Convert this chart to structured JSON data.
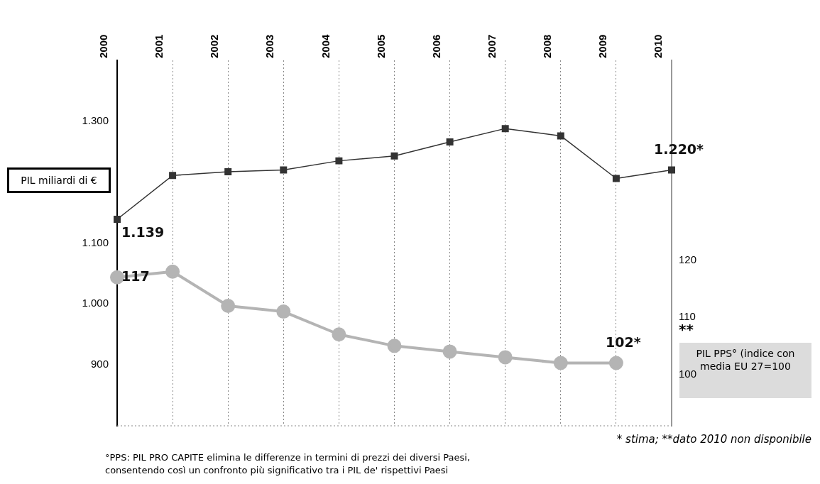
{
  "chart_data": {
    "type": "line",
    "categories": [
      "2000",
      "2001",
      "2002",
      "2003",
      "2004",
      "2005",
      "2006",
      "2007",
      "2008",
      "2009",
      "2010"
    ],
    "ylabel": "PIL miliardi di €",
    "y2label": "PIL PPS° (indice con media EU 27=100",
    "ylim": [
      800,
      1400
    ],
    "yticks": [
      900,
      {
        "value": 1000,
        "label": "1.000"
      },
      {
        "value": 1100,
        "label": "1.100"
      },
      {
        "value": 1300,
        "label": "1.300"
      }
    ],
    "y2lim": [
      91,
      155
    ],
    "y2ticks": [
      100,
      110,
      120
    ],
    "grid": "x",
    "line_style": "solid",
    "legend": false,
    "series": [
      {
        "name": null,
        "color": "#333333",
        "marker": "square",
        "values": [
          1139,
          1211,
          1217,
          1220,
          1235,
          1243,
          1266,
          1288,
          1276,
          1206,
          1220
        ],
        "value_labels": [
          "1.139",
          null,
          null,
          null,
          null,
          null,
          null,
          null,
          null,
          null,
          "1.220*"
        ]
      },
      {
        "name": null,
        "color": "#b4b4b4",
        "marker": "circle",
        "axis": "y2",
        "values": [
          117,
          118,
          112,
          111,
          107,
          105,
          104,
          103,
          102,
          102,
          null
        ],
        "value_labels": [
          "117",
          null,
          null,
          null,
          null,
          null,
          null,
          null,
          null,
          "102*",
          null
        ]
      }
    ],
    "annotations": [
      "**",
      "* stima; **dato 2010 non disponibile",
      "°PPS: PIL PRO CAPITE elimina le differenze in termini di prezzi dei diversi Paesi, consentendo così un confronto più significativo tra i PIL de' rispettivi Paesi"
    ]
  }
}
